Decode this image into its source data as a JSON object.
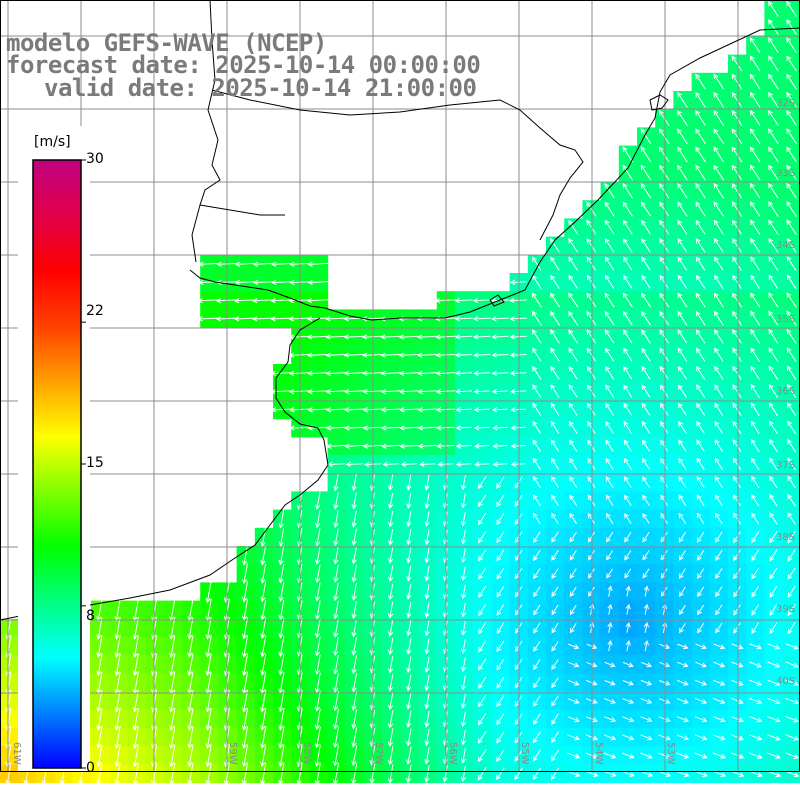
{
  "title": {
    "line1": "modelo GEFS-WAVE (NCEP)",
    "line2": "forecast date: 2025-10-14 00:00:00",
    "line3": "valid date: 2025-10-14 21:00:00"
  },
  "colorbar": {
    "unit": "[m/s]",
    "min": 0,
    "max": 30,
    "ticks": [
      "30",
      "22",
      "15",
      "8",
      "0"
    ],
    "tick_values": [
      30,
      22,
      15,
      8,
      0
    ],
    "gradient": [
      "#0000ff",
      "#0080ff",
      "#00ffff",
      "#00ff80",
      "#00ff00",
      "#80ff00",
      "#ffff00",
      "#ffa000",
      "#ff4000",
      "#ff0000",
      "#e0004a",
      "#c00080"
    ]
  },
  "map": {
    "variable": "wind speed",
    "lat_labels": [
      "32S",
      "33S",
      "34S",
      "35S",
      "36S",
      "37S",
      "38S",
      "39S",
      "40S"
    ],
    "lon_labels": [
      "61W",
      "60W",
      "59W",
      "58W",
      "57W",
      "56W",
      "55W",
      "54W",
      "53W"
    ],
    "land_color": "#ffffff",
    "coast_color": "#000000",
    "grid_color": "#8c8c8c",
    "arrow_color": "#ffffff"
  }
}
